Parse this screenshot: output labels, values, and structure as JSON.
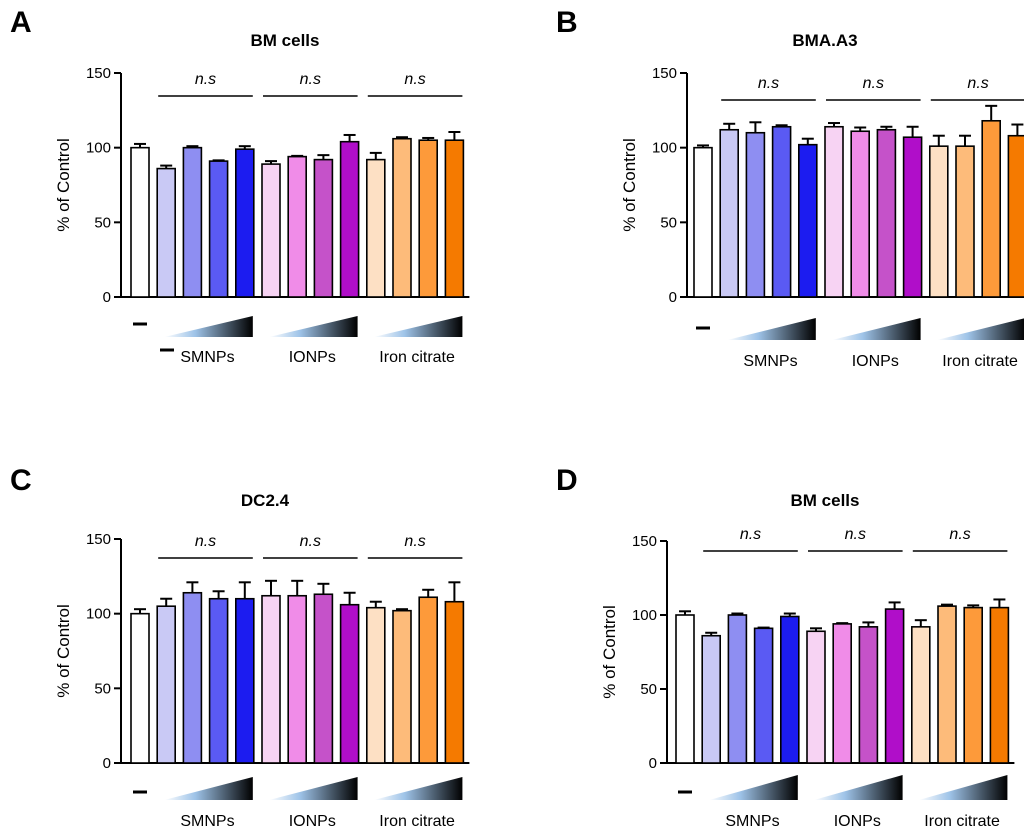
{
  "chart_data": [
    {
      "type": "bar",
      "panel": "A",
      "title": "BM cells",
      "ylabel": "% of Control",
      "ylim": [
        0,
        150
      ],
      "yticks": [
        0,
        50,
        100,
        150
      ],
      "control_label": "-",
      "groups": [
        {
          "label": "SMNPs",
          "significance": "n.s",
          "colors": [
            "#c9c9f5",
            "#8e8ef2",
            "#5a5af3",
            "#1c1cf0"
          ]
        },
        {
          "label": "IONPs",
          "significance": "n.s",
          "colors": [
            "#f7d3f3",
            "#f08ce8",
            "#c552c9",
            "#b00ec9"
          ]
        },
        {
          "label": "Iron citrate",
          "significance": "n.s",
          "colors": [
            "#fde0c4",
            "#fdbb7a",
            "#fd9a3a",
            "#f57a00"
          ]
        }
      ],
      "control": {
        "value": 100,
        "error": 2.5
      },
      "values": [
        [
          86,
          100,
          91,
          99
        ],
        [
          89,
          94,
          92,
          104
        ],
        [
          92,
          106,
          105,
          105
        ]
      ],
      "errors": [
        [
          2,
          1,
          0.5,
          2
        ],
        [
          2,
          0.5,
          3,
          4.5
        ],
        [
          4.5,
          1,
          1.5,
          5.5
        ]
      ]
    },
    {
      "type": "bar",
      "panel": "B",
      "title": "BMA.A3",
      "ylabel": "% of Control",
      "ylim": [
        0,
        150
      ],
      "yticks": [
        0,
        50,
        100,
        150
      ],
      "control_label": "-",
      "groups": [
        {
          "label": "SMNPs",
          "significance": "n.s",
          "colors": [
            "#c9c9f5",
            "#8e8ef2",
            "#5a5af3",
            "#1c1cf0"
          ]
        },
        {
          "label": "IONPs",
          "significance": "n.s",
          "colors": [
            "#f7d3f3",
            "#f08ce8",
            "#c552c9",
            "#b00ec9"
          ]
        },
        {
          "label": "Iron citrate",
          "significance": "n.s",
          "colors": [
            "#fde0c4",
            "#fdbb7a",
            "#fd9a3a",
            "#f57a00"
          ]
        }
      ],
      "control": {
        "value": 100,
        "error": 1.5
      },
      "values": [
        [
          112,
          110,
          114,
          102
        ],
        [
          114,
          111,
          112,
          107
        ],
        [
          101,
          101,
          118,
          108
        ]
      ],
      "errors": [
        [
          4,
          7,
          1,
          4
        ],
        [
          2.5,
          2.5,
          2,
          7
        ],
        [
          7,
          7,
          10,
          7.5
        ]
      ]
    },
    {
      "type": "bar",
      "panel": "C",
      "title": "DC2.4",
      "ylabel": "% of Control",
      "ylim": [
        0,
        150
      ],
      "yticks": [
        0,
        50,
        100,
        150
      ],
      "control_label": "-",
      "groups": [
        {
          "label": "SMNPs",
          "significance": "n.s",
          "colors": [
            "#c9c9f5",
            "#8e8ef2",
            "#5a5af3",
            "#1c1cf0"
          ]
        },
        {
          "label": "IONPs",
          "significance": "n.s",
          "colors": [
            "#f7d3f3",
            "#f08ce8",
            "#c552c9",
            "#b00ec9"
          ]
        },
        {
          "label": "Iron citrate",
          "significance": "n.s",
          "colors": [
            "#fde0c4",
            "#fdbb7a",
            "#fd9a3a",
            "#f57a00"
          ]
        }
      ],
      "control": {
        "value": 100,
        "error": 3
      },
      "values": [
        [
          105,
          114,
          110,
          110
        ],
        [
          112,
          112,
          113,
          106
        ],
        [
          104,
          102,
          111,
          108
        ]
      ],
      "errors": [
        [
          5,
          7,
          5,
          11
        ],
        [
          10,
          10,
          7,
          8
        ],
        [
          4,
          1,
          5,
          13
        ]
      ]
    },
    {
      "type": "bar",
      "panel": "D",
      "title": "BM cells",
      "ylabel": "% of Control",
      "ylim": [
        0,
        150
      ],
      "yticks": [
        0,
        50,
        100,
        150
      ],
      "control_label": "-",
      "groups": [
        {
          "label": "SMNPs",
          "significance": "n.s",
          "colors": [
            "#c9c9f5",
            "#8e8ef2",
            "#5a5af3",
            "#1c1cf0"
          ]
        },
        {
          "label": "IONPs",
          "significance": "n.s",
          "colors": [
            "#f7d3f3",
            "#f08ce8",
            "#c552c9",
            "#b00ec9"
          ]
        },
        {
          "label": "Iron citrate",
          "significance": "n.s",
          "colors": [
            "#fde0c4",
            "#fdbb7a",
            "#fd9a3a",
            "#f57a00"
          ]
        }
      ],
      "control": {
        "value": 100,
        "error": 2.5
      },
      "values": [
        [
          86,
          100,
          91,
          99
        ],
        [
          89,
          94,
          92,
          104
        ],
        [
          92,
          106,
          105,
          105
        ]
      ],
      "errors": [
        [
          2,
          1,
          0.5,
          2
        ],
        [
          2,
          0.5,
          3,
          4.5
        ],
        [
          4.5,
          1,
          1.5,
          5.5
        ]
      ]
    }
  ]
}
